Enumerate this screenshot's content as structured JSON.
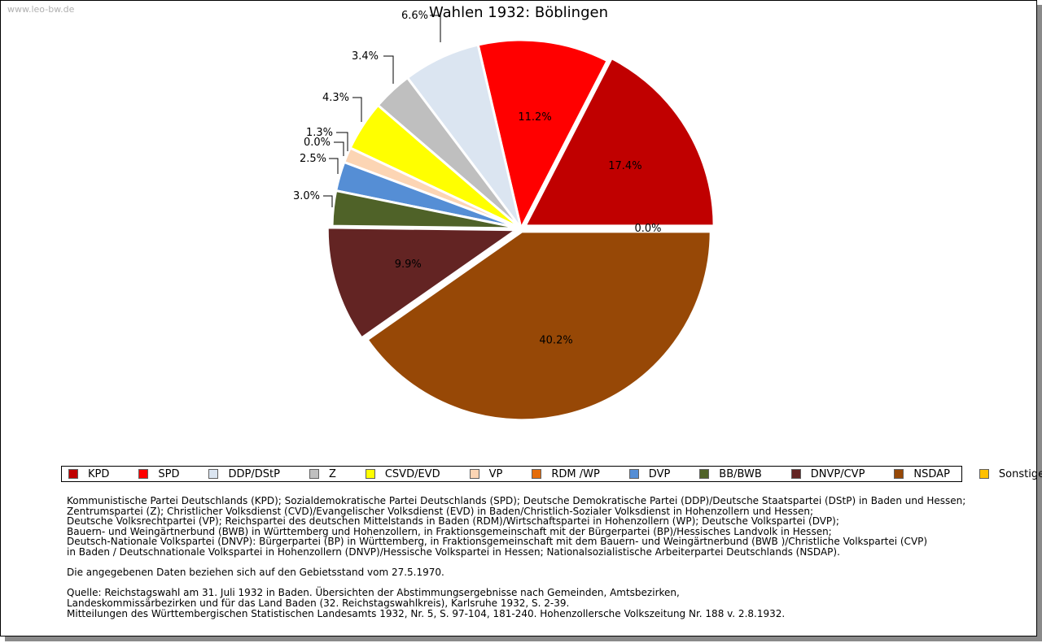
{
  "watermark": "www.leo-bw.de",
  "chart_data": {
    "type": "pie",
    "title": "Wahlen 1932: Böblingen",
    "slices": [
      {
        "name": "KPD",
        "value": 17.4,
        "label": "17.4%",
        "color": "#c00000"
      },
      {
        "name": "SPD",
        "value": 11.2,
        "label": "11.2%",
        "color": "#ff0000"
      },
      {
        "name": "DDP/DStP",
        "value": 6.6,
        "label": "6.6%",
        "color": "#dbe5f1"
      },
      {
        "name": "Z",
        "value": 3.4,
        "label": "3.4%",
        "color": "#bfbfbf"
      },
      {
        "name": "CSVD/EVD",
        "value": 4.3,
        "label": "4.3%",
        "color": "#ffff00"
      },
      {
        "name": "VP",
        "value": 1.3,
        "label": "1.3%",
        "color": "#fcd5b4"
      },
      {
        "name": "RDM /WP",
        "value": 0.0,
        "label": "0.0%",
        "color": "#e46c0a"
      },
      {
        "name": "DVP",
        "value": 2.5,
        "label": "2.5%",
        "color": "#558ed5"
      },
      {
        "name": "BB/BWB",
        "value": 3.0,
        "label": "3.0%",
        "color": "#4f6228"
      },
      {
        "name": "DNVP/CVP",
        "value": 9.9,
        "label": "9.9%",
        "color": "#632423"
      },
      {
        "name": "NSDAP",
        "value": 40.2,
        "label": "40.2%",
        "color": "#974806"
      },
      {
        "name": "Sonstige",
        "value": 0.0,
        "label": "0.0%",
        "color": "#ffc000"
      }
    ],
    "legend_position": "bottom"
  },
  "notes": {
    "lines": [
      "Kommunistische Partei Deutschlands (KPD); Sozialdemokratische Partei Deutschlands (SPD); Deutsche Demokratische Partei (DDP)/Deutsche Staatspartei (DStP) in Baden und Hessen;",
      "Zentrumspartei (Z); Christlicher Volksdienst (CVD)/Evangelischer Volksdienst (EVD) in Baden/Christlich-Sozialer Volksdienst in Hohenzollern und Hessen;",
      "Deutsche Volksrechtpartei (VP); Reichspartei des deutschen Mittelstands in Baden (RDM)/Wirtschaftspartei in Hohenzollern (WP); Deutsche Volkspartei (DVP);",
      "Bauern- und Weingärtnerbund (BWB) in Württemberg und Hohenzollern, in Fraktionsgemeinschaft mit der Bürgerpartei (BP)/Hessisches Landvolk in Hessen;",
      "Deutsch-Nationale Volkspartei (DNVP): Bürgerpartei (BP) in Württemberg, in Fraktionsgemeinschaft mit dem Bauern- und Weingärtnerbund (BWB )/Christliche Volkspartei (CVP)",
      "in Baden / Deutschnationale Volkspartei in Hohenzollern (DNVP)/Hessische Volkspartei in Hessen; Nationalsozialistische Arbeiterpartei Deutschlands (NSDAP).",
      "",
      "Die angegebenen Daten beziehen sich auf den Gebietsstand vom 27.5.1970.",
      "",
      "Quelle: Reichstagswahl am 31. Juli 1932 in Baden. Übersichten der Abstimmungsergebnisse nach Gemeinden, Amtsbezirken,",
      "Landeskommissärbezirken und für das Land Baden (32. Reichstagswahlkreis), Karlsruhe 1932, S. 2-39.",
      "Mitteilungen des Württembergischen Statistischen Landesamts 1932, Nr. 5, S. 97-104, 181-240. Hohenzollersche Volkszeitung Nr. 188 v. 2.8.1932."
    ]
  }
}
